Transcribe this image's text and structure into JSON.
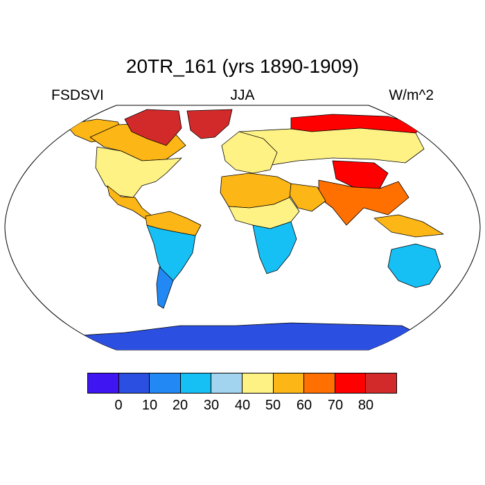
{
  "header": {
    "title": "20TR_161 (yrs 1890-1909)",
    "left": "FSDSVI",
    "center": "JJA",
    "right": "W/m^2"
  },
  "colorbar": {
    "colors": [
      "#3f16f2",
      "#2b4fe0",
      "#2289f4",
      "#16c0f5",
      "#a2d4ef",
      "#fff284",
      "#fcb616",
      "#ff7000",
      "#ff0000",
      "#d22a2a"
    ],
    "ticks": [
      "0",
      "10",
      "20",
      "30",
      "40",
      "50",
      "60",
      "70",
      "80"
    ]
  },
  "map": {
    "projection": "robinson",
    "regions": [
      {
        "name": "canadian-arctic",
        "level": 9
      },
      {
        "name": "greenland",
        "level": 9
      },
      {
        "name": "alaska",
        "level": 6
      },
      {
        "name": "canada",
        "level": 6
      },
      {
        "name": "north-america",
        "level": 5
      },
      {
        "name": "central-america",
        "level": 6
      },
      {
        "name": "amazon",
        "level": 6
      },
      {
        "name": "south-america",
        "level": 3
      },
      {
        "name": "patagonia",
        "level": 2
      },
      {
        "name": "northern-eurasia",
        "level": 5
      },
      {
        "name": "siberia-arctic-coast",
        "level": 8
      },
      {
        "name": "europe",
        "level": 5
      },
      {
        "name": "sahara",
        "level": 6
      },
      {
        "name": "sahel",
        "level": 5
      },
      {
        "name": "arabia",
        "level": 6
      },
      {
        "name": "tibet",
        "level": 8
      },
      {
        "name": "india-china",
        "level": 7
      },
      {
        "name": "southeast-asia",
        "level": 6
      },
      {
        "name": "southern-africa",
        "level": 3
      },
      {
        "name": "australia",
        "level": 3
      },
      {
        "name": "antarctica",
        "level": 1
      }
    ]
  }
}
